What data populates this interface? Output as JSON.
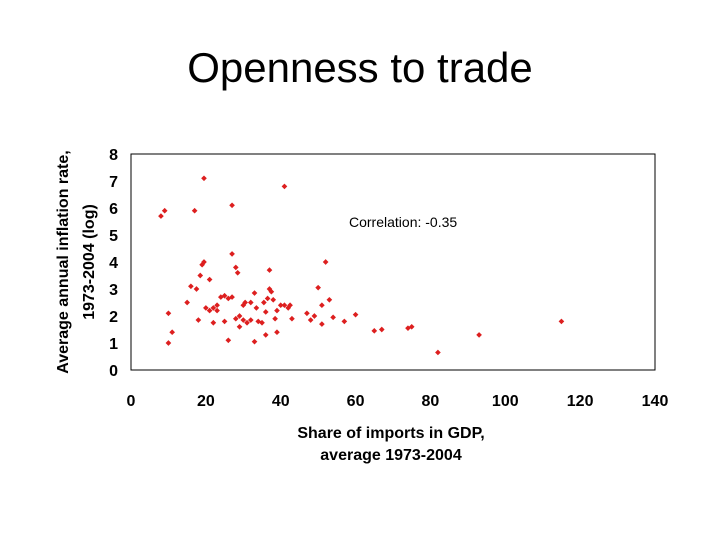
{
  "title": "Openness to trade",
  "chart_data": {
    "type": "scatter",
    "title": "Openness to trade",
    "xlabel_lines": [
      "Share of imports in GDP,",
      "average 1973-2004"
    ],
    "ylabel_lines": [
      "Average annual inflation rate,",
      "1973-2004 (log)"
    ],
    "xlim": [
      0,
      140
    ],
    "ylim": [
      0,
      8
    ],
    "xticks": [
      0,
      20,
      40,
      60,
      80,
      100,
      120,
      140
    ],
    "yticks": [
      0,
      1,
      2,
      3,
      4,
      5,
      6,
      7,
      8
    ],
    "grid": false,
    "annotation": "Correlation: -0.35",
    "color": "#dd1f1f",
    "points": [
      [
        8,
        5.7
      ],
      [
        9,
        5.9
      ],
      [
        10,
        2.1
      ],
      [
        10,
        1.0
      ],
      [
        11,
        1.4
      ],
      [
        15,
        2.5
      ],
      [
        16,
        3.1
      ],
      [
        17,
        5.9
      ],
      [
        17.5,
        3.0
      ],
      [
        18,
        1.85
      ],
      [
        18.5,
        3.5
      ],
      [
        19,
        3.9
      ],
      [
        19.5,
        4.0
      ],
      [
        19.5,
        7.1
      ],
      [
        20,
        2.3
      ],
      [
        21,
        3.35
      ],
      [
        21,
        2.2
      ],
      [
        22,
        2.3
      ],
      [
        22,
        1.75
      ],
      [
        23,
        2.4
      ],
      [
        23,
        2.2
      ],
      [
        24,
        2.7
      ],
      [
        25,
        2.75
      ],
      [
        25,
        1.8
      ],
      [
        26,
        2.65
      ],
      [
        26,
        1.1
      ],
      [
        27,
        6.1
      ],
      [
        27,
        4.3
      ],
      [
        27,
        2.7
      ],
      [
        28,
        3.8
      ],
      [
        28,
        1.9
      ],
      [
        28.5,
        3.6
      ],
      [
        29,
        2.0
      ],
      [
        29,
        1.6
      ],
      [
        30,
        1.85
      ],
      [
        30,
        2.4
      ],
      [
        30.5,
        2.5
      ],
      [
        31,
        1.75
      ],
      [
        32,
        2.5
      ],
      [
        32,
        1.85
      ],
      [
        33,
        1.05
      ],
      [
        33,
        2.85
      ],
      [
        33.5,
        2.3
      ],
      [
        34,
        1.8
      ],
      [
        35,
        1.75
      ],
      [
        35.5,
        2.5
      ],
      [
        36,
        1.3
      ],
      [
        36,
        2.15
      ],
      [
        36.5,
        2.65
      ],
      [
        37,
        3.7
      ],
      [
        37,
        3.0
      ],
      [
        37.5,
        2.9
      ],
      [
        38,
        2.6
      ],
      [
        38.5,
        1.9
      ],
      [
        39,
        2.2
      ],
      [
        39,
        1.4
      ],
      [
        40,
        2.4
      ],
      [
        41,
        2.4
      ],
      [
        41,
        6.8
      ],
      [
        42,
        2.3
      ],
      [
        42.5,
        2.4
      ],
      [
        43,
        1.9
      ],
      [
        47,
        2.1
      ],
      [
        48,
        1.85
      ],
      [
        49,
        2.0
      ],
      [
        50,
        3.05
      ],
      [
        51,
        2.4
      ],
      [
        51,
        1.7
      ],
      [
        52,
        4.0
      ],
      [
        53,
        2.6
      ],
      [
        54,
        1.95
      ],
      [
        57,
        1.8
      ],
      [
        60,
        2.05
      ],
      [
        65,
        1.45
      ],
      [
        67,
        1.5
      ],
      [
        74,
        1.55
      ],
      [
        75,
        1.6
      ],
      [
        82,
        0.65
      ],
      [
        93,
        1.3
      ],
      [
        115,
        1.8
      ]
    ]
  }
}
